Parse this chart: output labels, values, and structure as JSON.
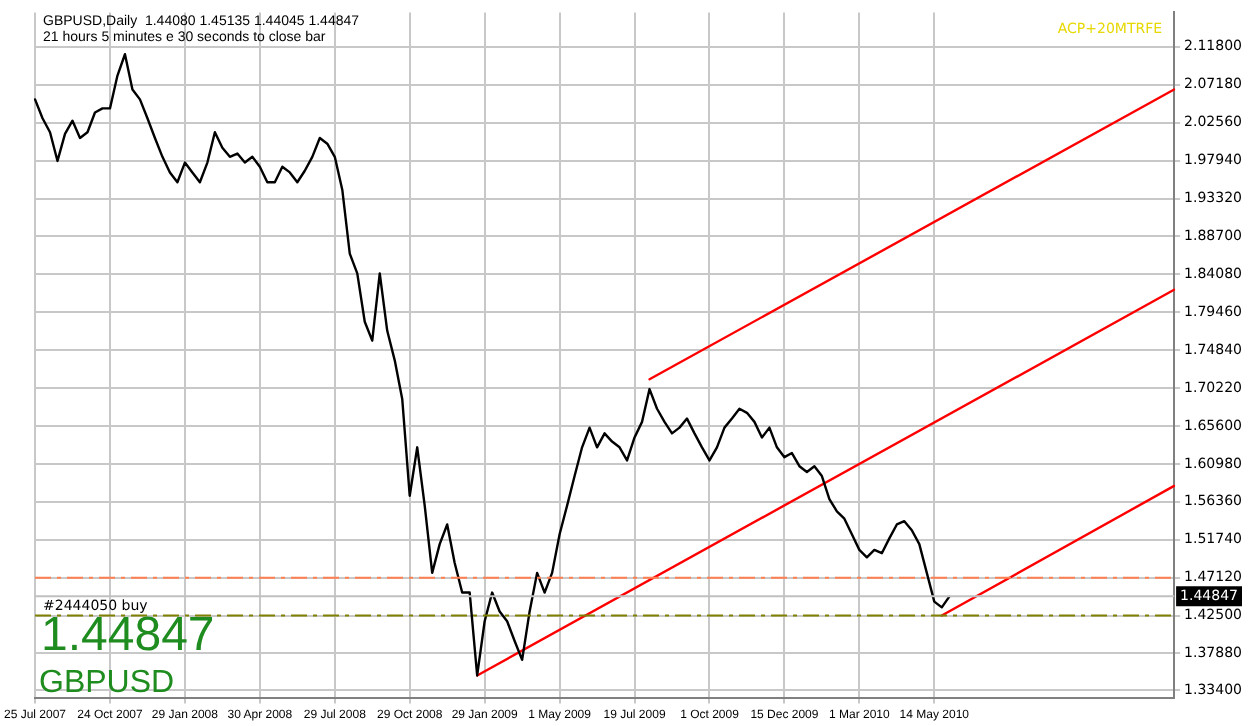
{
  "chart_data": {
    "type": "line",
    "title": "GBPUSD,Daily  1.44080 1.45135 1.44045 1.44847",
    "subtitle": "21 hours 5 minutes e 30 seconds to close bar",
    "categories": [
      "25 Jul 2007",
      null,
      null,
      null,
      null,
      null,
      null,
      null,
      null,
      null,
      "24 Oct 2007",
      null,
      null,
      null,
      null,
      null,
      null,
      null,
      null,
      null,
      "29 Jan 2008",
      null,
      null,
      null,
      null,
      null,
      null,
      null,
      null,
      null,
      "30 Apr 2008",
      null,
      null,
      null,
      null,
      null,
      null,
      null,
      null,
      null,
      "29 Jul 2008",
      null,
      null,
      null,
      null,
      null,
      null,
      null,
      null,
      null,
      "29 Oct 2008",
      null,
      null,
      null,
      null,
      null,
      null,
      null,
      null,
      null,
      "29 Jan 2009",
      null,
      null,
      null,
      null,
      null,
      null,
      null,
      null,
      null,
      "1 May 2009",
      null,
      null,
      null,
      null,
      null,
      null,
      null,
      null,
      null,
      "19 Jul 2009",
      null,
      null,
      null,
      null,
      null,
      null,
      null,
      null,
      null,
      "1 Oct 2009",
      null,
      null,
      null,
      null,
      null,
      null,
      null,
      null,
      null,
      "15 Dec 2009",
      null,
      null,
      null,
      null,
      null,
      null,
      null,
      null,
      null,
      "1 Mar 2010",
      null,
      null,
      null,
      null,
      null,
      null,
      null,
      null,
      null,
      "14 May 2010",
      null,
      null,
      null,
      null,
      null,
      null,
      null,
      null,
      null,
      null,
      null,
      null,
      null,
      null,
      null,
      null,
      null,
      null,
      null,
      null,
      null,
      null,
      null,
      null,
      null,
      null,
      null,
      null,
      null,
      null,
      null,
      null
    ],
    "series": [
      {
        "color": "#000000",
        "values": [
          2.054,
          2.031,
          2.014,
          1.979,
          2.012,
          2.028,
          2.007,
          2.014,
          2.038,
          2.043,
          2.043,
          2.083,
          2.109,
          2.066,
          2.054,
          2.031,
          2.007,
          1.984,
          1.965,
          1.953,
          1.977,
          1.965,
          1.953,
          1.977,
          2.014,
          1.995,
          1.984,
          1.988,
          1.977,
          1.984,
          1.972,
          1.953,
          1.953,
          1.972,
          1.965,
          1.953,
          1.967,
          1.984,
          2.007,
          2.0,
          1.984,
          1.944,
          1.866,
          1.842,
          1.783,
          1.76,
          1.842,
          1.772,
          1.736,
          1.689,
          1.571,
          1.63,
          1.559,
          1.477,
          1.512,
          1.536,
          1.489,
          1.453,
          1.453,
          1.352,
          1.418,
          1.453,
          1.43,
          1.418,
          1.394,
          1.371,
          1.43,
          1.477,
          1.453,
          1.477,
          1.524,
          1.559,
          1.595,
          1.63,
          1.654,
          1.63,
          1.647,
          1.637,
          1.63,
          1.614,
          1.642,
          1.661,
          1.701,
          1.677,
          1.661,
          1.647,
          1.654,
          1.665,
          1.647,
          1.63,
          1.614,
          1.63,
          1.654,
          1.665,
          1.677,
          1.672,
          1.661,
          1.642,
          1.654,
          1.63,
          1.618,
          1.623,
          1.607,
          1.6,
          1.607,
          1.595,
          1.567,
          1.552,
          1.543,
          1.524,
          1.505,
          1.496,
          1.505,
          1.501,
          1.519,
          1.536,
          1.54,
          1.529,
          1.512,
          1.477,
          1.442,
          1.435,
          1.448,
          null,
          null,
          null,
          null,
          null,
          null,
          null,
          null,
          null,
          null,
          null,
          null,
          null,
          null,
          null,
          null,
          null,
          null,
          null,
          null,
          null,
          null,
          null,
          null,
          null,
          null,
          null,
          null,
          null,
          null
        ]
      },
      {
        "color": "#ff0000",
        "values": [
          null,
          null,
          null,
          null,
          null,
          null,
          null,
          null,
          null,
          null,
          null,
          null,
          null,
          null,
          null,
          null,
          null,
          null,
          null,
          null,
          null,
          null,
          null,
          null,
          null,
          null,
          null,
          null,
          null,
          null,
          null,
          null,
          null,
          null,
          null,
          null,
          null,
          null,
          null,
          null,
          null,
          null,
          null,
          null,
          null,
          null,
          null,
          null,
          null,
          null,
          null,
          null,
          null,
          null,
          null,
          null,
          null,
          null,
          null,
          1.352,
          null,
          null,
          null,
          null,
          null,
          null,
          null,
          null,
          null,
          null,
          null,
          null,
          null,
          null,
          null,
          null,
          null,
          null,
          null,
          null,
          null,
          null,
          null,
          null,
          null,
          null,
          null,
          null,
          null,
          null,
          null,
          null,
          null,
          null,
          null,
          null,
          null,
          null,
          null,
          null,
          null,
          null,
          null,
          null,
          null,
          null,
          null,
          null,
          null,
          null,
          null,
          null,
          null,
          null,
          null,
          null,
          null,
          null,
          null,
          null,
          null,
          null,
          null,
          null,
          null,
          null,
          null,
          null,
          null,
          null,
          null,
          null,
          null,
          null,
          null,
          null,
          null,
          null,
          null,
          null,
          null,
          null,
          null,
          null,
          null,
          null,
          null,
          null,
          null,
          null,
          null,
          null,
          1.822
        ]
      },
      {
        "color": "#ff0000",
        "values": [
          null,
          null,
          null,
          null,
          null,
          null,
          null,
          null,
          null,
          null,
          null,
          null,
          null,
          null,
          null,
          null,
          null,
          null,
          null,
          null,
          null,
          null,
          null,
          null,
          null,
          null,
          null,
          null,
          null,
          null,
          null,
          null,
          null,
          null,
          null,
          null,
          null,
          null,
          null,
          null,
          null,
          null,
          null,
          null,
          null,
          null,
          null,
          null,
          null,
          null,
          null,
          null,
          null,
          null,
          null,
          null,
          null,
          null,
          null,
          null,
          null,
          null,
          null,
          null,
          null,
          null,
          null,
          null,
          null,
          null,
          null,
          null,
          null,
          null,
          null,
          null,
          null,
          null,
          null,
          null,
          null,
          null,
          1.713,
          null,
          null,
          null,
          null,
          null,
          null,
          null,
          null,
          null,
          null,
          null,
          null,
          null,
          null,
          null,
          null,
          null,
          null,
          null,
          null,
          null,
          null,
          null,
          null,
          null,
          null,
          null,
          null,
          null,
          null,
          null,
          null,
          null,
          null,
          null,
          null,
          null,
          null,
          null,
          null,
          null,
          null,
          null,
          null,
          null,
          null,
          null,
          null,
          null,
          null,
          null,
          null,
          null,
          null,
          null,
          null,
          null,
          null,
          null,
          null,
          null,
          null,
          null,
          null,
          null,
          null,
          null,
          null,
          null,
          2.066
        ]
      },
      {
        "color": "#ff0000",
        "values": [
          null,
          null,
          null,
          null,
          null,
          null,
          null,
          null,
          null,
          null,
          null,
          null,
          null,
          null,
          null,
          null,
          null,
          null,
          null,
          null,
          null,
          null,
          null,
          null,
          null,
          null,
          null,
          null,
          null,
          null,
          null,
          null,
          null,
          null,
          null,
          null,
          null,
          null,
          null,
          null,
          null,
          null,
          null,
          null,
          null,
          null,
          null,
          null,
          null,
          null,
          null,
          null,
          null,
          null,
          null,
          null,
          null,
          null,
          null,
          null,
          null,
          null,
          null,
          null,
          null,
          null,
          null,
          null,
          null,
          null,
          null,
          null,
          null,
          null,
          null,
          null,
          null,
          null,
          null,
          null,
          null,
          null,
          null,
          null,
          null,
          null,
          null,
          null,
          null,
          null,
          null,
          null,
          null,
          null,
          null,
          null,
          null,
          null,
          null,
          null,
          null,
          null,
          null,
          null,
          null,
          null,
          null,
          null,
          null,
          null,
          null,
          null,
          null,
          null,
          null,
          null,
          null,
          null,
          null,
          null,
          null,
          1.425,
          null,
          null,
          null,
          null,
          null,
          null,
          null,
          null,
          null,
          null,
          null,
          null,
          null,
          null,
          null,
          null,
          null,
          null,
          null,
          null,
          null,
          null,
          null,
          null,
          null,
          null,
          null,
          null,
          null,
          null,
          1.583
        ]
      }
    ],
    "ylim": [
      1.325,
      2.16
    ],
    "yticks": [
      {
        "value": 2.118,
        "label": "2.11800"
      },
      {
        "value": 2.0718,
        "label": "2.07180"
      },
      {
        "value": 2.0256,
        "label": "2.02560"
      },
      {
        "value": 1.9794,
        "label": "1.97940"
      },
      {
        "value": 1.9332,
        "label": "1.93320"
      },
      {
        "value": 1.887,
        "label": "1.88700"
      },
      {
        "value": 1.8408,
        "label": "1.84080"
      },
      {
        "value": 1.7946,
        "label": "1.79460"
      },
      {
        "value": 1.7484,
        "label": "1.74840"
      },
      {
        "value": 1.7022,
        "label": "1.70220"
      },
      {
        "value": 1.656,
        "label": "1.65600"
      },
      {
        "value": 1.6098,
        "label": "1.60980"
      },
      {
        "value": 1.5636,
        "label": "1.56360"
      },
      {
        "value": 1.5174,
        "label": "1.51740"
      },
      {
        "value": 1.4712,
        "label": "1.47120"
      },
      {
        "value": 1.425,
        "label": "1.42500"
      },
      {
        "value": 1.3788,
        "label": "1.37880"
      },
      {
        "value": 1.334,
        "label": "1.33400"
      }
    ],
    "ref_lines": [
      {
        "axis": "y",
        "value": 1.4712,
        "color": "#ff7f50",
        "line_style": "dashed"
      },
      {
        "axis": "y",
        "value": 1.44847,
        "label": "1.44847",
        "color": "#c0c0c0",
        "line_style": "solid"
      },
      {
        "axis": "y",
        "value": 1.425,
        "label": "#2444050 buy",
        "color": "#808000",
        "line_style": "dashed"
      }
    ],
    "annotations": [
      "1.44847",
      "GBPUSD",
      "ACP+20MTRFE"
    ],
    "grid": true,
    "legend": false,
    "marker": "none",
    "line_style": "solid"
  }
}
